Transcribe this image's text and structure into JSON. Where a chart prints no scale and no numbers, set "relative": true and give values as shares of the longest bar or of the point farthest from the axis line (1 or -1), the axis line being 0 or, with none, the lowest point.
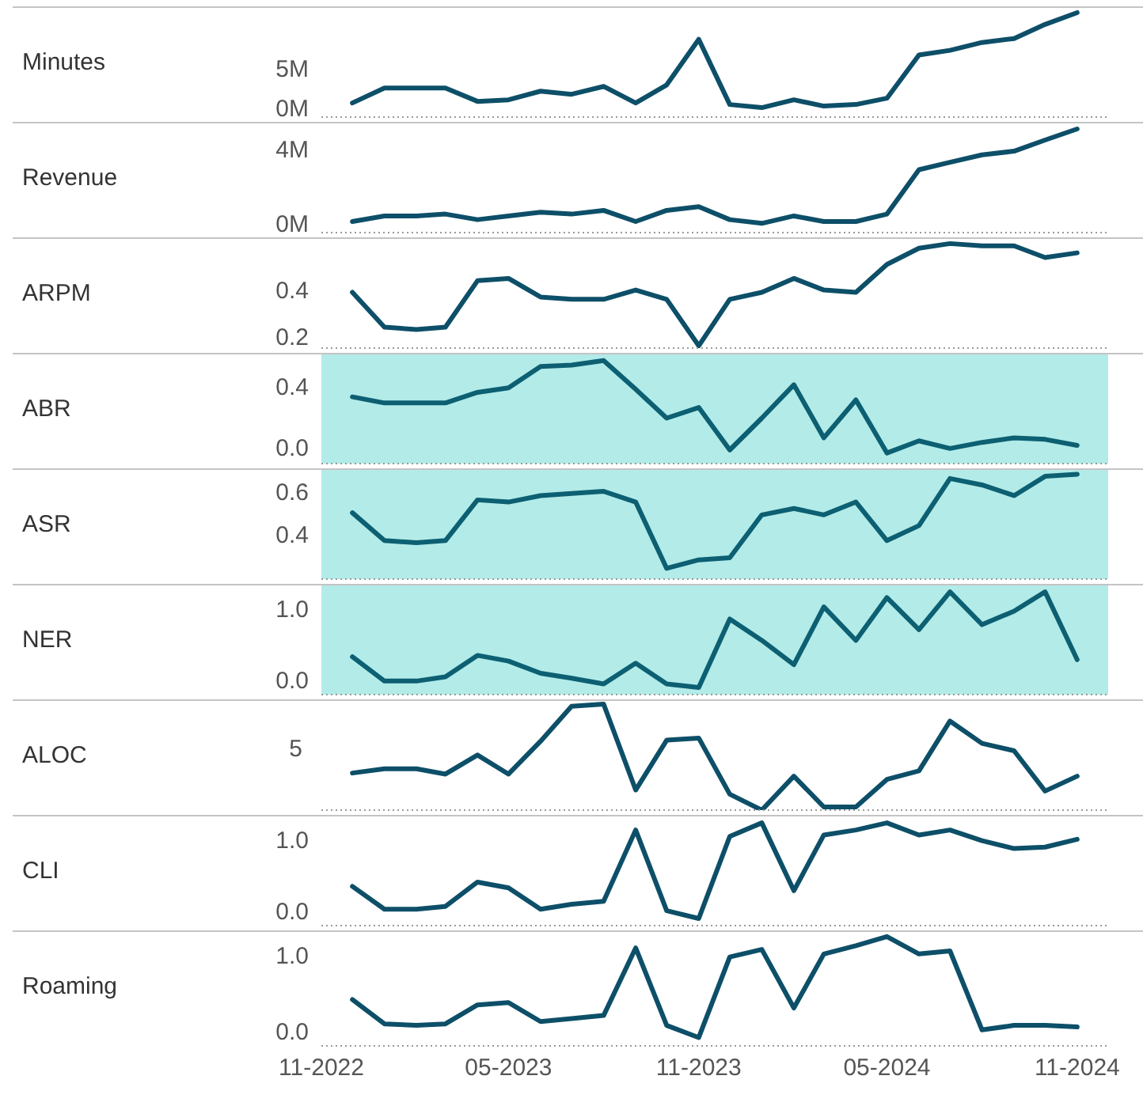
{
  "chart_data": [
    {
      "type": "line",
      "ylabel": "Minutes",
      "color": "#0d4f68",
      "x": [
        "2022-12",
        "2023-01",
        "2023-02",
        "2023-03",
        "2023-04",
        "2023-05",
        "2023-06",
        "2023-07",
        "2023-08",
        "2023-09",
        "2023-10",
        "2023-11",
        "2023-12",
        "2024-01",
        "2024-02",
        "2024-03",
        "2024-04",
        "2024-05",
        "2024-06",
        "2024-07",
        "2024-08",
        "2024-09",
        "2024-10",
        "2024-11"
      ],
      "values": [
        600000,
        2500000,
        2500000,
        2500000,
        800000,
        1000000,
        2100000,
        1700000,
        2700000,
        600000,
        2900000,
        8700000,
        400000,
        0,
        1000000,
        200000,
        400000,
        1200000,
        6700000,
        7300000,
        8300000,
        8800000,
        10600000,
        12100000
      ],
      "xlim": [
        "2022-11",
        "2024-12"
      ],
      "ylim": [
        -1200000,
        12700000
      ],
      "yticks": [
        {
          "value": 0,
          "label": "0M"
        },
        {
          "value": 5000000,
          "label": "5M"
        }
      ],
      "tick_labels": "y"
    },
    {
      "type": "line",
      "ylabel": "Revenue",
      "color": "#0d4f68",
      "x": [
        "2022-12",
        "2023-01",
        "2023-02",
        "2023-03",
        "2023-04",
        "2023-05",
        "2023-06",
        "2023-07",
        "2023-08",
        "2023-09",
        "2023-10",
        "2023-11",
        "2023-12",
        "2024-01",
        "2024-02",
        "2024-03",
        "2024-04",
        "2024-05",
        "2024-06",
        "2024-07",
        "2024-08",
        "2024-09",
        "2024-10",
        "2024-11"
      ],
      "values": [
        100000,
        400000,
        400000,
        500000,
        200000,
        400000,
        600000,
        500000,
        700000,
        100000,
        700000,
        900000,
        200000,
        0,
        400000,
        100000,
        100000,
        500000,
        2900000,
        3300000,
        3700000,
        3900000,
        4500000,
        5100000
      ],
      "xlim": [
        "2022-11",
        "2024-12"
      ],
      "ylim": [
        -500000,
        5400000
      ],
      "yticks": [
        {
          "value": 0,
          "label": "0M"
        },
        {
          "value": 4000000,
          "label": "4M"
        }
      ],
      "tick_labels": "y"
    },
    {
      "type": "line",
      "ylabel": "ARPM",
      "color": "#0d4f68",
      "x": [
        "2022-12",
        "2023-01",
        "2023-02",
        "2023-03",
        "2023-04",
        "2023-05",
        "2023-06",
        "2023-07",
        "2023-08",
        "2023-09",
        "2023-10",
        "2023-11",
        "2023-12",
        "2024-01",
        "2024-02",
        "2024-03",
        "2024-04",
        "2024-05",
        "2024-06",
        "2024-07",
        "2024-08",
        "2024-09",
        "2024-10",
        "2024-11"
      ],
      "values": [
        0.39,
        0.24,
        0.23,
        0.24,
        0.44,
        0.45,
        0.37,
        0.36,
        0.36,
        0.4,
        0.36,
        0.16,
        0.36,
        0.39,
        0.45,
        0.4,
        0.39,
        0.51,
        0.58,
        0.6,
        0.59,
        0.59,
        0.54,
        0.56
      ],
      "xlim": [
        "2022-11",
        "2024-12"
      ],
      "ylim": [
        0.15,
        0.62
      ],
      "yticks": [
        0.2,
        0.4
      ],
      "tick_labels": "y"
    },
    {
      "type": "line",
      "ylabel": "ABR",
      "color": "#0d5f72",
      "x": [
        "2022-12",
        "2023-01",
        "2023-02",
        "2023-03",
        "2023-04",
        "2023-05",
        "2023-06",
        "2023-07",
        "2023-08",
        "2023-09",
        "2023-10",
        "2023-11",
        "2023-12",
        "2024-01",
        "2024-02",
        "2024-03",
        "2024-04",
        "2024-05",
        "2024-06",
        "2024-07",
        "2024-08",
        "2024-09",
        "2024-10",
        "2024-11"
      ],
      "values": [
        0.33,
        0.29,
        0.29,
        0.29,
        0.36,
        0.39,
        0.53,
        0.54,
        0.57,
        0.38,
        0.19,
        0.26,
        -0.02,
        0.19,
        0.41,
        0.06,
        0.31,
        -0.04,
        0.04,
        -0.01,
        0.03,
        0.06,
        0.05,
        0.01
      ],
      "xlim": [
        "2022-11",
        "2024-12"
      ],
      "ylim": [
        -0.11,
        0.61
      ],
      "yticks": [
        {
          "value": 0,
          "label": "0.0"
        },
        0.4
      ],
      "tick_labels": "y",
      "bands": [
        {
          "axis": "x",
          "from": "2022-11",
          "to": "2024-12",
          "color": "#b2ebe8"
        }
      ]
    },
    {
      "type": "line",
      "ylabel": "ASR",
      "color": "#0d5f72",
      "x": [
        "2022-12",
        "2023-01",
        "2023-02",
        "2023-03",
        "2023-04",
        "2023-05",
        "2023-06",
        "2023-07",
        "2023-08",
        "2023-09",
        "2023-10",
        "2023-11",
        "2023-12",
        "2024-01",
        "2024-02",
        "2024-03",
        "2024-04",
        "2024-05",
        "2024-06",
        "2024-07",
        "2024-08",
        "2024-09",
        "2024-10",
        "2024-11"
      ],
      "values": [
        0.5,
        0.37,
        0.36,
        0.37,
        0.56,
        0.55,
        0.58,
        0.59,
        0.6,
        0.55,
        0.24,
        0.28,
        0.29,
        0.49,
        0.52,
        0.49,
        0.55,
        0.37,
        0.44,
        0.66,
        0.63,
        0.58,
        0.67,
        0.68
      ],
      "xlim": [
        "2022-11",
        "2024-12"
      ],
      "ylim": [
        0.19,
        0.7
      ],
      "yticks": [
        0.4,
        0.6
      ],
      "tick_labels": "y",
      "bands": [
        {
          "axis": "x",
          "from": "2022-11",
          "to": "2024-12",
          "color": "#b2ebe8"
        }
      ]
    },
    {
      "type": "line",
      "ylabel": "NER",
      "color": "#0d5f72",
      "x": [
        "2022-12",
        "2023-01",
        "2023-02",
        "2023-03",
        "2023-04",
        "2023-05",
        "2023-06",
        "2023-07",
        "2023-08",
        "2023-09",
        "2023-10",
        "2023-11",
        "2023-12",
        "2024-01",
        "2024-02",
        "2024-03",
        "2024-04",
        "2024-05",
        "2024-06",
        "2024-07",
        "2024-08",
        "2024-09",
        "2024-10",
        "2024-11"
      ],
      "values": [
        0.32,
        -0.02,
        -0.02,
        0.04,
        0.34,
        0.26,
        0.09,
        0.02,
        -0.06,
        0.23,
        -0.06,
        -0.11,
        0.85,
        0.55,
        0.21,
        1.02,
        0.55,
        1.15,
        0.7,
        1.23,
        0.77,
        0.96,
        1.23,
        0.28
      ],
      "xlim": [
        "2022-11",
        "2024-12"
      ],
      "ylim": [
        -0.21,
        1.32
      ],
      "yticks": [
        {
          "value": 0,
          "label": "0.0"
        },
        {
          "value": 1,
          "label": "1.0"
        }
      ],
      "tick_labels": "y",
      "bands": [
        {
          "axis": "x",
          "from": "2022-11",
          "to": "2024-12",
          "color": "#b2ebe8"
        }
      ]
    },
    {
      "type": "line",
      "ylabel": "ALOC",
      "color": "#0d4f68",
      "relative": true,
      "annotations": [
        "5"
      ],
      "x": [
        "2022-12",
        "2023-01",
        "2023-02",
        "2023-03",
        "2023-04",
        "2023-05",
        "2023-06",
        "2023-07",
        "2023-08",
        "2023-09",
        "2023-10",
        "2023-11",
        "2023-12",
        "2024-01",
        "2024-02",
        "2024-03",
        "2024-04",
        "2024-05",
        "2024-06",
        "2024-07",
        "2024-08",
        "2024-09",
        "2024-10",
        "2024-11"
      ],
      "values": [
        0.35,
        0.39,
        0.39,
        0.34,
        0.52,
        0.34,
        0.65,
        0.98,
        1,
        0.19,
        0.66,
        0.68,
        0.15,
        0,
        0.32,
        0.03,
        0.03,
        0.29,
        0.37,
        0.84,
        0.63,
        0.56,
        0.18,
        0.32
      ],
      "xlim": [
        "2022-11",
        "2024-12"
      ],
      "tick_labels": "y"
    },
    {
      "type": "line",
      "ylabel": "CLI",
      "color": "#0d4f68",
      "x": [
        "2022-12",
        "2023-01",
        "2023-02",
        "2023-03",
        "2023-04",
        "2023-05",
        "2023-06",
        "2023-07",
        "2023-08",
        "2023-09",
        "2023-10",
        "2023-11",
        "2023-12",
        "2024-01",
        "2024-02",
        "2024-03",
        "2024-04",
        "2024-05",
        "2024-06",
        "2024-07",
        "2024-08",
        "2024-09",
        "2024-10",
        "2024-11"
      ],
      "values": [
        0.34,
        0.02,
        0.02,
        0.06,
        0.4,
        0.32,
        0.02,
        0.09,
        0.13,
        1.13,
        0,
        -0.11,
        1.04,
        1.23,
        0.28,
        1.06,
        1.13,
        1.23,
        1.06,
        1.13,
        0.98,
        0.87,
        0.89,
        1
      ],
      "xlim": [
        "2022-11",
        "2024-12"
      ],
      "ylim": [
        -0.21,
        1.32
      ],
      "yticks": [
        {
          "value": 0,
          "label": "0.0"
        },
        {
          "value": 1,
          "label": "1.0"
        }
      ],
      "tick_labels": "y"
    },
    {
      "type": "line",
      "ylabel": "Roaming",
      "color": "#0d4f68",
      "x": [
        "2022-12",
        "2023-01",
        "2023-02",
        "2023-03",
        "2023-04",
        "2023-05",
        "2023-06",
        "2023-07",
        "2023-08",
        "2023-09",
        "2023-10",
        "2023-11",
        "2023-12",
        "2024-01",
        "2024-02",
        "2024-03",
        "2024-04",
        "2024-05",
        "2024-06",
        "2024-07",
        "2024-08",
        "2024-09",
        "2024-10",
        "2024-11"
      ],
      "values": [
        0.42,
        0.1,
        0.08,
        0.1,
        0.35,
        0.38,
        0.13,
        0.17,
        0.21,
        1.1,
        0.08,
        -0.08,
        0.98,
        1.08,
        0.31,
        1.02,
        1.13,
        1.25,
        1.02,
        1.06,
        0.02,
        0.08,
        0.08,
        0.06
      ],
      "xlim": [
        "2022-11",
        "2024-12"
      ],
      "ylim": [
        -0.19,
        1.31
      ],
      "yticks": [
        {
          "value": 0,
          "label": "0.0"
        },
        {
          "value": 1,
          "label": "1.0"
        }
      ],
      "xticks": [
        {
          "value": "2022-11",
          "label": "11-2022"
        },
        {
          "value": "2023-05",
          "label": "05-2023"
        },
        {
          "value": "2023-11",
          "label": "11-2023"
        },
        {
          "value": "2024-05",
          "label": "05-2024"
        },
        {
          "value": "2024-11",
          "label": "11-2024"
        }
      ]
    }
  ]
}
